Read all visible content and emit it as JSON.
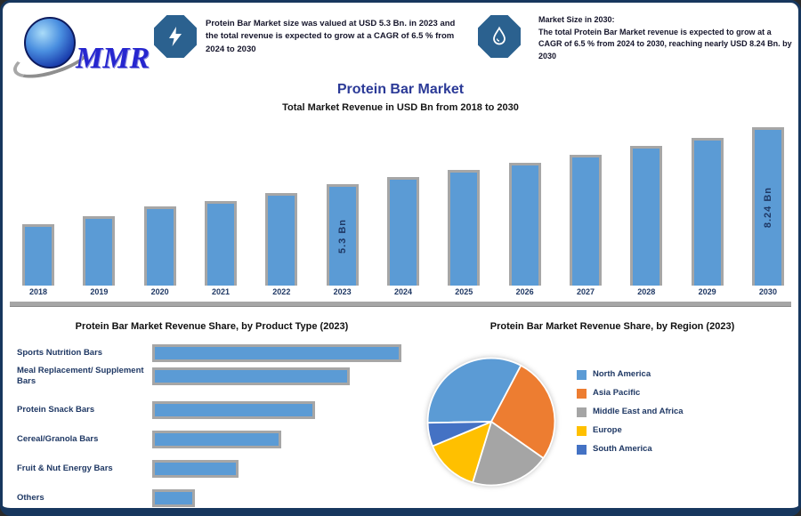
{
  "logo": {
    "text": "MMR"
  },
  "header": {
    "badge1": {
      "icon": "lightning-icon",
      "text": "Protein Bar Market size was valued at USD 5.3 Bn. in 2023 and the total revenue is expected to grow at a CAGR of 6.5 % from 2024 to 2030"
    },
    "badge2": {
      "icon": "water-drop-icon",
      "lead": "Market Size in 2030:",
      "text": "The total Protein Bar Market revenue is expected to grow at a CAGR of 6.5 % from 2024 to 2030, reaching nearly USD 8.24 Bn. by 2030"
    }
  },
  "title": "Protein Bar Market",
  "subtitle": "Total Market Revenue in USD Bn from 2018 to 2030",
  "colors": {
    "bar_blue": "#5B9BD5",
    "bar_border_gray": "#A6A6A6",
    "navy_text": "#1F3864",
    "border_navy": "#17375E",
    "badge_blue": "#2B618F",
    "title_blue": "#2B3A97"
  },
  "chart_data": [
    {
      "type": "bar",
      "title": "Protein Bar Market",
      "subtitle": "Total Market Revenue in USD Bn from 2018 to 2030",
      "categories": [
        "2018",
        "2019",
        "2020",
        "2021",
        "2022",
        "2023",
        "2024",
        "2025",
        "2026",
        "2027",
        "2028",
        "2029",
        "2030"
      ],
      "values": [
        3.2,
        3.6,
        4.1,
        4.4,
        4.8,
        5.3,
        5.65,
        6.0,
        6.4,
        6.8,
        7.25,
        7.7,
        8.24
      ],
      "unit": "USD Bn",
      "ylim": [
        0,
        8.24
      ],
      "data_labels": {
        "2023": "5.3 Bn",
        "2030": "8.24 Bn"
      },
      "bar_color": "#5B9BD5"
    },
    {
      "type": "bar",
      "orientation": "horizontal",
      "title": "Protein Bar Market Revenue Share, by Product Type (2023)",
      "categories": [
        "Sports Nutrition Bars",
        "Meal Replacement/ Supplement Bars",
        "Protein Snack Bars",
        "Cereal/Granola Bars",
        "Fruit & Nut Energy Bars",
        "Others"
      ],
      "values": [
        29,
        23,
        19,
        15,
        10,
        5
      ],
      "unit": "%",
      "bar_color": "#5B9BD5"
    },
    {
      "type": "pie",
      "title": "Protein Bar Market Revenue Share, by Region (2023)",
      "start_angle_cw_from_top": -91,
      "slices": [
        {
          "label": "North America",
          "value": 33,
          "color": "#5B9BD5"
        },
        {
          "label": "Asia Pacific",
          "value": 27,
          "color": "#ED7D31"
        },
        {
          "label": "Middle East and Africa",
          "value": 20,
          "color": "#A5A5A5"
        },
        {
          "label": "Europe",
          "value": 14,
          "color": "#FFC000"
        },
        {
          "label": "South America",
          "value": 6,
          "color": "#4472C4"
        }
      ],
      "legend_position": "right"
    }
  ],
  "sections": {
    "left_heading": "Protein Bar Market Revenue Share, by Product Type (2023)",
    "right_heading": "Protein Bar Market Revenue Share, by Region (2023)"
  }
}
